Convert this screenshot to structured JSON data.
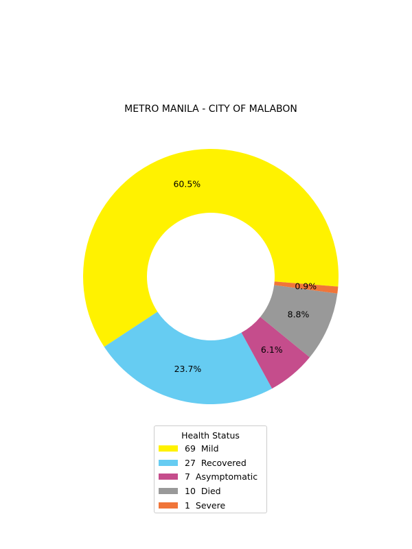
{
  "chart_data": {
    "type": "pie",
    "style": "donut",
    "title": "METRO MANILA - CITY OF MALABON",
    "slices": [
      {
        "label": "Mild",
        "value": 69,
        "pct_label": "60.5%",
        "color": "#fff200"
      },
      {
        "label": "Recovered",
        "value": 27,
        "pct_label": "23.7%",
        "color": "#66ccf2"
      },
      {
        "label": "Asymptomatic",
        "value": 7,
        "pct_label": "6.1%",
        "color": "#c54d8c"
      },
      {
        "label": "Died",
        "value": 10,
        "pct_label": "8.8%",
        "color": "#999999"
      },
      {
        "label": "Severe",
        "value": 1,
        "pct_label": "0.9%",
        "color": "#f07539"
      }
    ],
    "legend": {
      "title": "Health Status",
      "placement": "bottom-center",
      "entries": [
        "69  Mild",
        "27  Recovered",
        "7  Asymptomatic",
        "10  Died",
        "1  Severe"
      ]
    }
  }
}
